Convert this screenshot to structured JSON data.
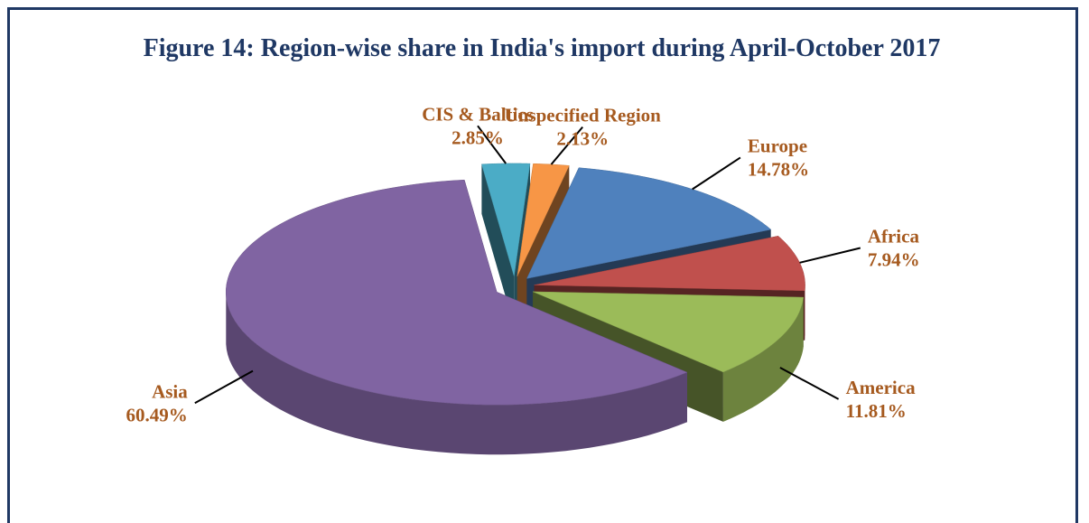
{
  "chart_data": {
    "type": "pie",
    "title": "Figure 14: Region-wise share in India's import during April-October 2017",
    "categories": [
      "CIS & Baltics",
      "Unspecified Region",
      "Europe",
      "Africa",
      "America",
      "Asia"
    ],
    "values": [
      2.85,
      2.13,
      14.78,
      7.94,
      11.81,
      60.49
    ],
    "value_labels": [
      "2.85%",
      "2.13%",
      "14.78%",
      "7.94%",
      "11.81%",
      "60.49%"
    ],
    "colors": [
      "#4bacc6",
      "#f79646",
      "#4f81bd",
      "#c0504d",
      "#9bbb59",
      "#8064a2"
    ]
  }
}
